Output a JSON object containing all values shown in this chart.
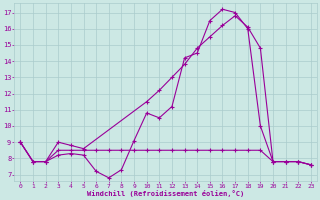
{
  "xlabel": "Windchill (Refroidissement éolien,°C)",
  "background_color": "#cce8e4",
  "grid_color": "#aacccc",
  "line_color": "#990099",
  "xlim": [
    -0.5,
    23.5
  ],
  "ylim": [
    6.6,
    17.6
  ],
  "xticks": [
    0,
    1,
    2,
    3,
    4,
    5,
    6,
    7,
    8,
    9,
    10,
    11,
    12,
    13,
    14,
    15,
    16,
    17,
    18,
    19,
    20,
    21,
    22,
    23
  ],
  "yticks": [
    7,
    8,
    9,
    10,
    11,
    12,
    13,
    14,
    15,
    16,
    17
  ],
  "line1_x": [
    0,
    1,
    2,
    3,
    4,
    5,
    6,
    7,
    8,
    9,
    10,
    11,
    12,
    13,
    14,
    15,
    16,
    17,
    18,
    19,
    20,
    21,
    22,
    23
  ],
  "line1_y": [
    9.0,
    7.8,
    7.8,
    8.2,
    8.3,
    8.2,
    7.2,
    6.8,
    7.3,
    9.1,
    10.8,
    10.5,
    11.2,
    14.2,
    14.5,
    16.5,
    17.2,
    17.0,
    16.0,
    10.0,
    7.8,
    7.8,
    7.8,
    7.6
  ],
  "line2_x": [
    0,
    1,
    2,
    3,
    4,
    5,
    10,
    11,
    12,
    13,
    14,
    15,
    16,
    17,
    18,
    19,
    20,
    21,
    22,
    23
  ],
  "line2_y": [
    9.0,
    7.8,
    7.8,
    9.0,
    8.8,
    8.6,
    11.5,
    12.2,
    13.0,
    13.8,
    14.8,
    15.5,
    16.2,
    16.8,
    16.1,
    14.8,
    7.8,
    7.8,
    7.8,
    7.6
  ],
  "line3_x": [
    0,
    1,
    2,
    3,
    4,
    5,
    6,
    7,
    8,
    9,
    10,
    11,
    12,
    13,
    14,
    15,
    16,
    17,
    18,
    19,
    20,
    21,
    22,
    23
  ],
  "line3_y": [
    9.0,
    7.8,
    7.8,
    8.5,
    8.5,
    8.5,
    8.5,
    8.5,
    8.5,
    8.5,
    8.5,
    8.5,
    8.5,
    8.5,
    8.5,
    8.5,
    8.5,
    8.5,
    8.5,
    8.5,
    7.8,
    7.8,
    7.8,
    7.6
  ]
}
